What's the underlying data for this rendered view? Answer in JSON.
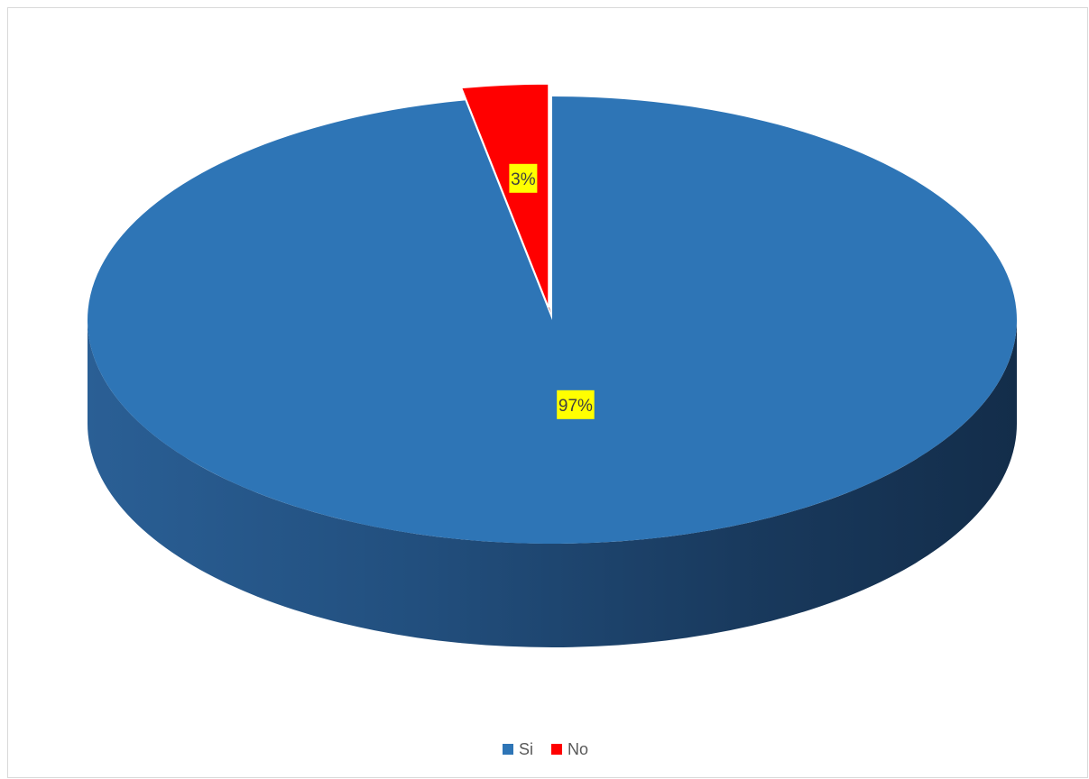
{
  "chart_data": {
    "type": "pie",
    "style": "3d",
    "categories": [
      "Si",
      "No"
    ],
    "values": [
      97,
      3
    ],
    "data_labels": [
      "97%",
      "3%"
    ],
    "colors": [
      "#2e75b6",
      "#ff0000"
    ],
    "exploded_slice": "No",
    "legend": {
      "position": "bottom",
      "entries": [
        "Si",
        "No"
      ]
    }
  }
}
